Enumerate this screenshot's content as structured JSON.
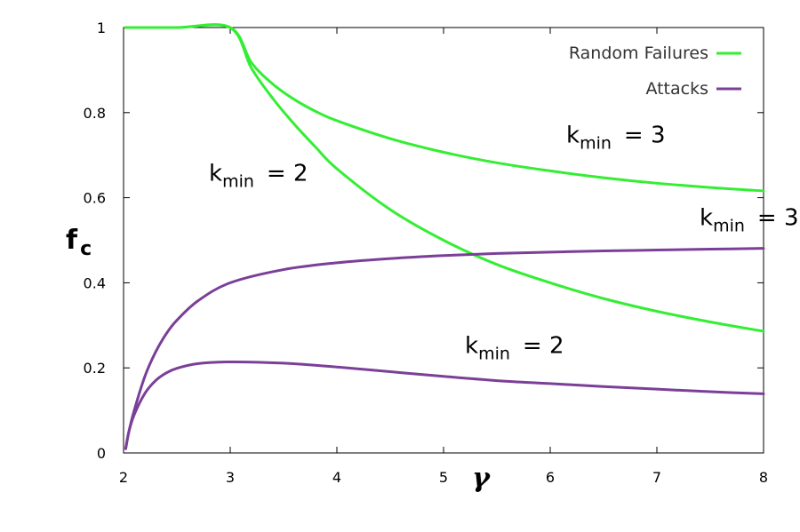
{
  "chart_data": {
    "type": "line",
    "xlabel": "γ",
    "ylabel": {
      "main": "f",
      "sub": "c"
    },
    "xlim": [
      2,
      8
    ],
    "ylim": [
      0,
      1
    ],
    "xticks": [
      2,
      3,
      4,
      5,
      6,
      7,
      8
    ],
    "yticks": [
      0,
      0.2,
      0.4,
      0.6,
      0.8,
      1
    ],
    "ytick_labels": [
      "0",
      "0.2",
      "0.4",
      "0.6",
      "0.8",
      "1"
    ],
    "grid": false,
    "legend_position": "top-right",
    "legend": [
      {
        "label": "Random Failures",
        "color": "#33ee33"
      },
      {
        "label": "Attacks",
        "color": "#7b3f98"
      }
    ],
    "series": [
      {
        "group": "Random Failures",
        "curve": "kmin-3",
        "color": "#33ee33",
        "x": [
          2.02,
          2.5,
          3.0,
          3.2,
          3.4,
          3.6,
          3.8,
          4.0,
          4.5,
          5.0,
          5.5,
          6.0,
          6.5,
          7.0,
          7.5,
          8.0
        ],
        "y": [
          1,
          1,
          1,
          0.917,
          0.867,
          0.831,
          0.803,
          0.781,
          0.739,
          0.707,
          0.682,
          0.663,
          0.647,
          0.634,
          0.624,
          0.616
        ]
      },
      {
        "group": "Random Failures",
        "curve": "kmin-2",
        "color": "#33ee33",
        "x": [
          2.02,
          2.5,
          3.0,
          3.2,
          3.4,
          3.6,
          3.8,
          4.0,
          4.5,
          5.0,
          5.5,
          6.0,
          6.5,
          7.0,
          7.5,
          8.0
        ],
        "y": [
          1,
          1,
          1,
          0.904,
          0.833,
          0.773,
          0.719,
          0.668,
          0.572,
          0.5,
          0.443,
          0.4,
          0.363,
          0.333,
          0.308,
          0.286
        ]
      },
      {
        "group": "Attacks",
        "curve": "kmin-3",
        "color": "#7b3f98",
        "x": [
          2.02,
          2.05,
          2.1,
          2.2,
          2.3,
          2.4,
          2.5,
          2.7,
          3.0,
          3.5,
          4.0,
          4.5,
          5.0,
          5.5,
          6.0,
          6.5,
          7.0,
          7.5,
          8.0
        ],
        "y": [
          0.01,
          0.05,
          0.1,
          0.18,
          0.237,
          0.28,
          0.312,
          0.358,
          0.4,
          0.431,
          0.447,
          0.457,
          0.464,
          0.469,
          0.472,
          0.475,
          0.477,
          0.479,
          0.481
        ]
      },
      {
        "group": "Attacks",
        "curve": "kmin-2",
        "color": "#7b3f98",
        "x": [
          2.02,
          2.05,
          2.1,
          2.2,
          2.3,
          2.4,
          2.5,
          2.7,
          3.0,
          3.5,
          4.0,
          4.5,
          5.0,
          5.5,
          6.0,
          6.5,
          7.0,
          7.5,
          8.0
        ],
        "y": [
          0.01,
          0.05,
          0.09,
          0.14,
          0.17,
          0.188,
          0.199,
          0.21,
          0.214,
          0.211,
          0.202,
          0.191,
          0.18,
          0.17,
          0.163,
          0.156,
          0.15,
          0.144,
          0.139
        ]
      }
    ],
    "annotations": [
      {
        "main": "k",
        "sub": "min",
        "rest": "= 3",
        "x": 6.15,
        "y": 0.73
      },
      {
        "main": "k",
        "sub": "min",
        "rest": "= 2",
        "x": 2.8,
        "y": 0.64
      },
      {
        "main": "k",
        "sub": "min",
        "rest": "= 3",
        "x": 7.4,
        "y": 0.535
      },
      {
        "main": "k",
        "sub": "min",
        "rest": "= 2",
        "x": 5.2,
        "y": 0.235
      }
    ]
  }
}
